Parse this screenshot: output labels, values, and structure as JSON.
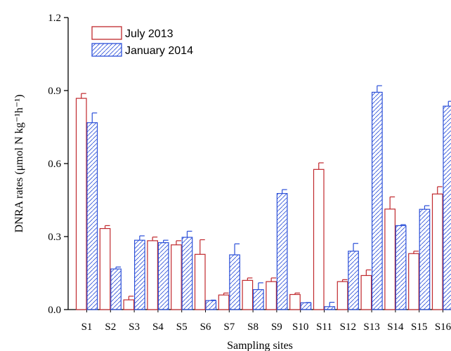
{
  "chart_data": {
    "type": "bar",
    "categories": [
      "S1",
      "S2",
      "S3",
      "S4",
      "S5",
      "S6",
      "S7",
      "S8",
      "S9",
      "S10",
      "S11",
      "S12",
      "S13",
      "S14",
      "S15",
      "S16"
    ],
    "series": [
      {
        "name": "July 2013",
        "color": "#c0282d",
        "fill": "none",
        "values": [
          0.868,
          0.333,
          0.04,
          0.283,
          0.266,
          0.227,
          0.06,
          0.12,
          0.115,
          0.062,
          0.576,
          0.115,
          0.14,
          0.413,
          0.23,
          0.475
        ],
        "errors": [
          0.02,
          0.012,
          0.015,
          0.015,
          0.017,
          0.06,
          0.008,
          0.01,
          0.015,
          0.006,
          0.027,
          0.008,
          0.023,
          0.05,
          0.01,
          0.03
        ]
      },
      {
        "name": "January 2014",
        "color": "#2b4fd8",
        "fill": "hatched",
        "values": [
          0.768,
          0.167,
          0.285,
          0.275,
          0.297,
          0.037,
          0.225,
          0.082,
          0.477,
          0.028,
          0.012,
          0.24,
          0.893,
          0.345,
          0.412,
          0.836
        ],
        "errors": [
          0.04,
          0.008,
          0.018,
          0.01,
          0.025,
          0.002,
          0.045,
          0.028,
          0.016,
          0.001,
          0.018,
          0.032,
          0.027,
          0.004,
          0.015,
          0.02
        ]
      }
    ],
    "ylabel": "DNRA rates (μmol N kg⁻¹h⁻¹)",
    "xlabel": "Sampling sites",
    "ylim": [
      0,
      1.2
    ],
    "yticks": [
      "0.0",
      "0.3",
      "0.6",
      "0.9",
      "1.2"
    ],
    "grid": false,
    "legend_position": "top-left"
  }
}
